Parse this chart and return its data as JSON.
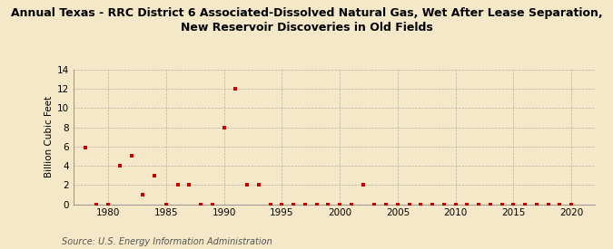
{
  "title_line1": "Annual Texas - RRC District 6 Associated-Dissolved Natural Gas, Wet After Lease Separation,",
  "title_line2": "New Reservoir Discoveries in Old Fields",
  "ylabel": "Billion Cubic Feet",
  "source": "Source: U.S. Energy Information Administration",
  "background_color": "#f5e8c8",
  "marker_color": "#cc0000",
  "xlim": [
    1977,
    2022
  ],
  "ylim": [
    0,
    14
  ],
  "xticks": [
    1980,
    1985,
    1990,
    1995,
    2000,
    2005,
    2010,
    2015,
    2020
  ],
  "yticks": [
    0,
    2,
    4,
    6,
    8,
    10,
    12,
    14
  ],
  "data": [
    [
      1978,
      5.9
    ],
    [
      1979,
      0.0
    ],
    [
      1980,
      0.0
    ],
    [
      1981,
      4.0
    ],
    [
      1982,
      5.0
    ],
    [
      1983,
      1.0
    ],
    [
      1984,
      3.0
    ],
    [
      1985,
      0.0
    ],
    [
      1986,
      2.0
    ],
    [
      1987,
      2.0
    ],
    [
      1988,
      0.0
    ],
    [
      1989,
      0.0
    ],
    [
      1990,
      8.0
    ],
    [
      1991,
      12.0
    ],
    [
      1992,
      2.0
    ],
    [
      1993,
      2.0
    ],
    [
      1994,
      0.0
    ],
    [
      1995,
      0.0
    ],
    [
      1996,
      0.0
    ],
    [
      1997,
      0.0
    ],
    [
      1998,
      0.0
    ],
    [
      1999,
      0.0
    ],
    [
      2000,
      0.0
    ],
    [
      2001,
      0.0
    ],
    [
      2002,
      2.0
    ],
    [
      2003,
      0.0
    ],
    [
      2004,
      0.0
    ],
    [
      2005,
      0.0
    ],
    [
      2006,
      0.0
    ],
    [
      2007,
      0.0
    ],
    [
      2008,
      0.0
    ],
    [
      2009,
      0.0
    ],
    [
      2010,
      0.0
    ],
    [
      2011,
      0.0
    ],
    [
      2012,
      0.0
    ],
    [
      2013,
      0.0
    ],
    [
      2014,
      0.0
    ],
    [
      2015,
      0.0
    ],
    [
      2016,
      0.0
    ],
    [
      2017,
      0.0
    ],
    [
      2018,
      0.0
    ],
    [
      2019,
      0.0
    ],
    [
      2020,
      0.0
    ]
  ]
}
